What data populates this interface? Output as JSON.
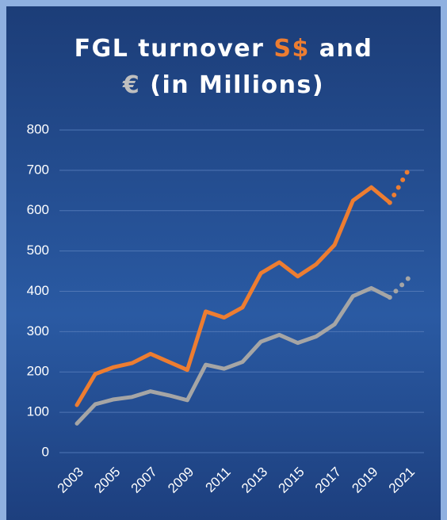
{
  "chart_data": {
    "type": "line",
    "title_lines": [
      [
        {
          "text": "FGL turnover ",
          "color": "#ffffff"
        },
        {
          "text": "S$",
          "color": "#ed7d31"
        },
        {
          "text": " and",
          "color": "#ffffff"
        }
      ],
      [
        {
          "text": "€",
          "color": "#bfbfbf"
        },
        {
          "text": " (in Millions)",
          "color": "#ffffff"
        }
      ]
    ],
    "x": [
      2003,
      2004,
      2005,
      2006,
      2007,
      2008,
      2009,
      2010,
      2011,
      2012,
      2013,
      2014,
      2015,
      2016,
      2017,
      2018,
      2019,
      2020,
      2021
    ],
    "xlim": [
      2003,
      2021
    ],
    "xticks": [
      2003,
      2005,
      2007,
      2009,
      2011,
      2013,
      2015,
      2017,
      2019,
      2021
    ],
    "ylim": [
      0,
      800
    ],
    "yticks": [
      0,
      100,
      200,
      300,
      400,
      500,
      600,
      700,
      800
    ],
    "grid": true,
    "dotted_from": 2020,
    "series": [
      {
        "color": "#ed7d31",
        "values": [
          118,
          195,
          212,
          222,
          245,
          225,
          205,
          350,
          335,
          360,
          445,
          472,
          437,
          467,
          515,
          625,
          658,
          620,
          700
        ]
      },
      {
        "color": "#a5a5a5",
        "values": [
          72,
          120,
          132,
          138,
          152,
          142,
          130,
          218,
          208,
          225,
          275,
          292,
          272,
          288,
          318,
          388,
          408,
          385,
          432
        ]
      }
    ]
  }
}
